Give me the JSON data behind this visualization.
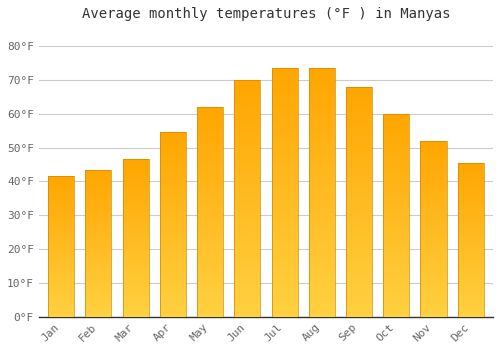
{
  "title": "Average monthly temperatures (°F ) in Manyas",
  "months": [
    "Jan",
    "Feb",
    "Mar",
    "Apr",
    "May",
    "Jun",
    "Jul",
    "Aug",
    "Sep",
    "Oct",
    "Nov",
    "Dec"
  ],
  "values": [
    41.5,
    43.5,
    46.5,
    54.5,
    62.0,
    70.0,
    73.5,
    73.5,
    68.0,
    60.0,
    52.0,
    45.5
  ],
  "bar_color_top": "#FFA500",
  "bar_color_bottom": "#FFD040",
  "bar_edge_color": "#CC8800",
  "bar_edge_width": 0.5,
  "yticks": [
    0,
    10,
    20,
    30,
    40,
    50,
    60,
    70,
    80
  ],
  "ytick_labels": [
    "0°F",
    "10°F",
    "20°F",
    "30°F",
    "40°F",
    "50°F",
    "60°F",
    "70°F",
    "80°F"
  ],
  "ylim": [
    0,
    85
  ],
  "background_color": "#FFFFFF",
  "plot_bg_color": "#FFFFFF",
  "grid_color": "#CCCCCC",
  "title_fontsize": 10,
  "tick_fontsize": 8,
  "tick_color": "#666666",
  "bar_width": 0.7
}
